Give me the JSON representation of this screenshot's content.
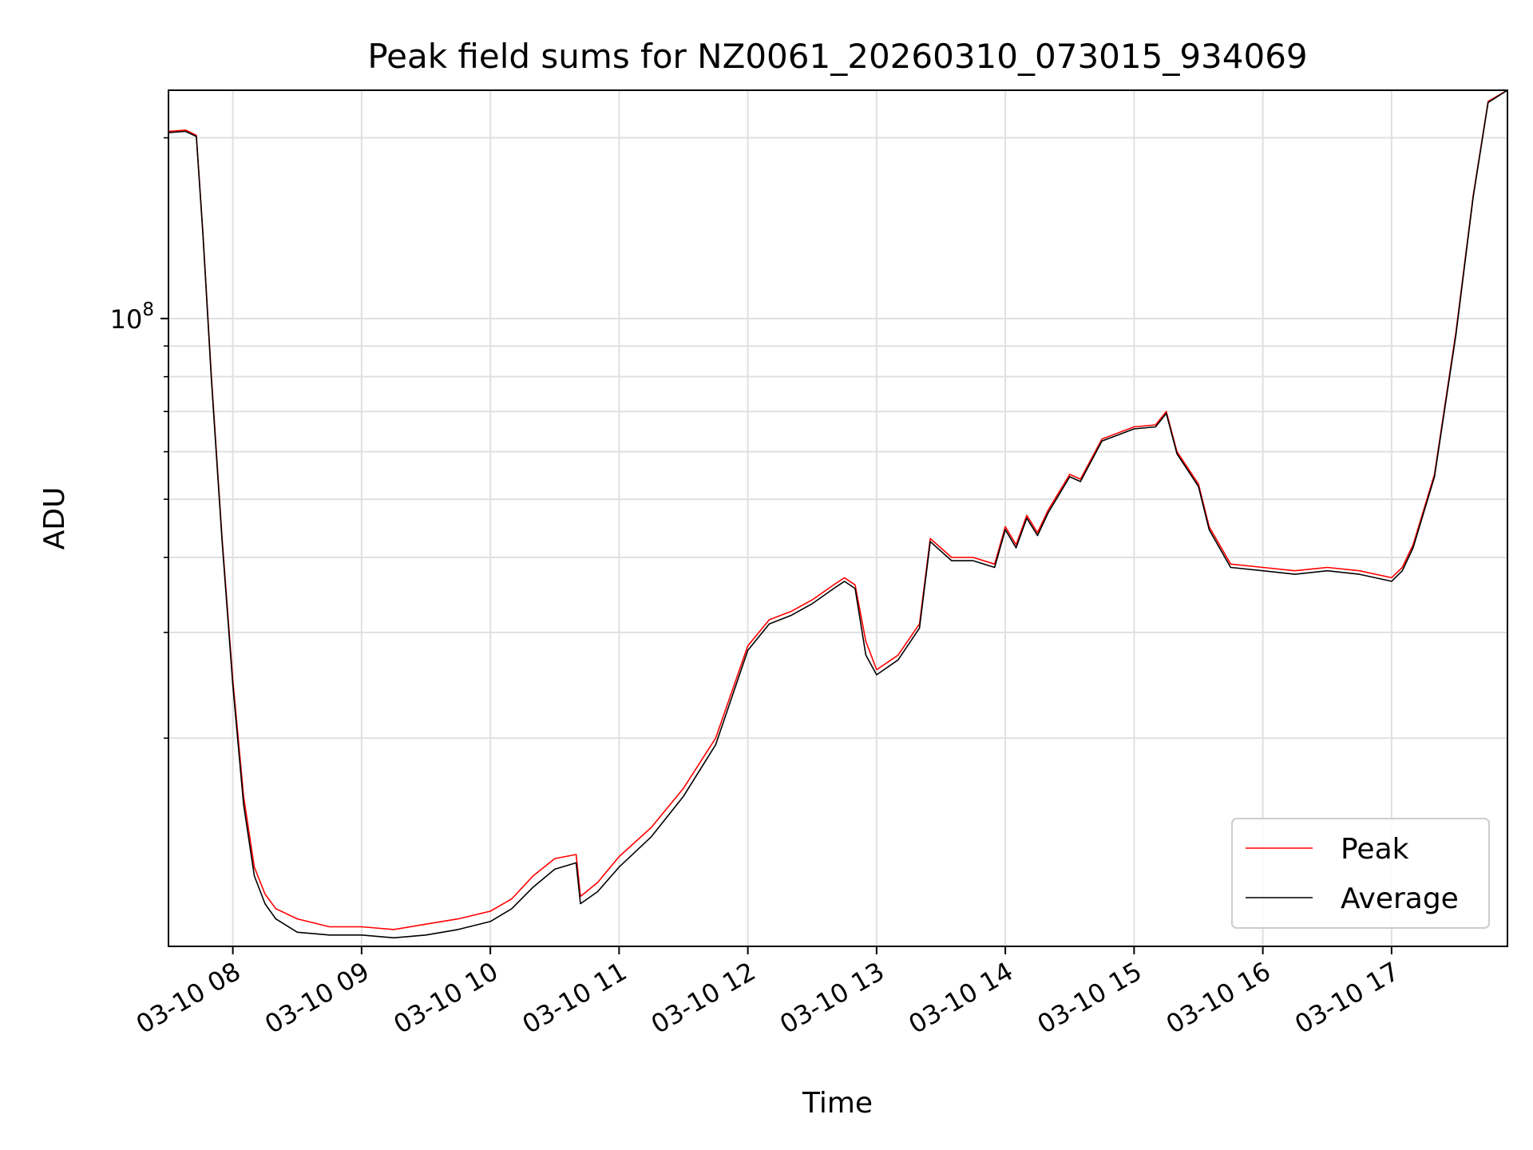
{
  "chart_data": {
    "type": "line",
    "title": "Peak field sums for NZ0061_20260310_073015_934069",
    "xlabel": "Time",
    "ylabel": "ADU",
    "y_scale": "log",
    "ylim": [
      9000000,
      240000000
    ],
    "xlim": [
      "03-10 07:30",
      "03-10 17:54"
    ],
    "grid": true,
    "legend_position": "lower-right",
    "x_ticks": [
      "03-10 08",
      "03-10 09",
      "03-10 10",
      "03-10 11",
      "03-10 12",
      "03-10 13",
      "03-10 14",
      "03-10 15",
      "03-10 16",
      "03-10 17"
    ],
    "y_ticks": [
      {
        "label_base": "10",
        "label_exp": "8",
        "value": 100000000
      }
    ],
    "y_minor_ticks": [
      20000000,
      30000000,
      40000000,
      50000000,
      60000000,
      70000000,
      80000000,
      90000000,
      200000000
    ],
    "colors": {
      "Peak": "#ff0000",
      "Average": "#000000"
    },
    "series": [
      {
        "name": "Peak",
        "x": [
          "03-10 07:30",
          "03-10 07:38",
          "03-10 07:43",
          "03-10 07:46",
          "03-10 07:50",
          "03-10 07:55",
          "03-10 08:00",
          "03-10 08:05",
          "03-10 08:10",
          "03-10 08:15",
          "03-10 08:20",
          "03-10 08:30",
          "03-10 08:45",
          "03-10 09:00",
          "03-10 09:15",
          "03-10 09:30",
          "03-10 09:45",
          "03-10 10:00",
          "03-10 10:10",
          "03-10 10:20",
          "03-10 10:30",
          "03-10 10:40",
          "03-10 10:42",
          "03-10 10:50",
          "03-10 11:00",
          "03-10 11:15",
          "03-10 11:30",
          "03-10 11:45",
          "03-10 12:00",
          "03-10 12:10",
          "03-10 12:20",
          "03-10 12:30",
          "03-10 12:40",
          "03-10 12:45",
          "03-10 12:50",
          "03-10 12:55",
          "03-10 13:00",
          "03-10 13:10",
          "03-10 13:20",
          "03-10 13:25",
          "03-10 13:35",
          "03-10 13:45",
          "03-10 13:55",
          "03-10 14:00",
          "03-10 14:05",
          "03-10 14:10",
          "03-10 14:15",
          "03-10 14:20",
          "03-10 14:30",
          "03-10 14:35",
          "03-10 14:45",
          "03-10 15:00",
          "03-10 15:10",
          "03-10 15:15",
          "03-10 15:20",
          "03-10 15:30",
          "03-10 15:35",
          "03-10 15:45",
          "03-10 16:00",
          "03-10 16:15",
          "03-10 16:30",
          "03-10 16:45",
          "03-10 17:00",
          "03-10 17:05",
          "03-10 17:10",
          "03-10 17:20",
          "03-10 17:30",
          "03-10 17:38",
          "03-10 17:45",
          "03-10 17:54"
        ],
        "values": [
          205000000,
          206000000,
          202000000,
          140000000,
          80000000,
          43000000,
          25000000,
          16000000,
          12200000,
          11000000,
          10400000,
          10000000,
          9700000,
          9700000,
          9600000,
          9800000,
          10000000,
          10300000,
          10800000,
          11800000,
          12600000,
          12800000,
          10900000,
          11500000,
          12700000,
          14200000,
          16500000,
          20000000,
          28500000,
          31500000,
          32500000,
          34000000,
          36000000,
          37000000,
          36000000,
          29000000,
          26000000,
          27500000,
          31000000,
          43000000,
          40000000,
          40000000,
          39000000,
          45000000,
          42000000,
          47000000,
          44000000,
          48000000,
          55000000,
          54000000,
          63000000,
          66000000,
          66500000,
          70000000,
          60000000,
          53000000,
          45000000,
          39000000,
          38500000,
          38000000,
          38500000,
          38000000,
          37000000,
          38500000,
          42000000,
          55000000,
          95000000,
          160000000,
          230000000,
          240000000
        ]
      },
      {
        "name": "Average",
        "x": [
          "03-10 07:30",
          "03-10 07:38",
          "03-10 07:43",
          "03-10 07:46",
          "03-10 07:50",
          "03-10 07:55",
          "03-10 08:00",
          "03-10 08:05",
          "03-10 08:10",
          "03-10 08:15",
          "03-10 08:20",
          "03-10 08:30",
          "03-10 08:45",
          "03-10 09:00",
          "03-10 09:15",
          "03-10 09:30",
          "03-10 09:45",
          "03-10 10:00",
          "03-10 10:10",
          "03-10 10:20",
          "03-10 10:30",
          "03-10 10:40",
          "03-10 10:42",
          "03-10 10:50",
          "03-10 11:00",
          "03-10 11:15",
          "03-10 11:30",
          "03-10 11:45",
          "03-10 12:00",
          "03-10 12:10",
          "03-10 12:20",
          "03-10 12:30",
          "03-10 12:40",
          "03-10 12:45",
          "03-10 12:50",
          "03-10 12:55",
          "03-10 13:00",
          "03-10 13:10",
          "03-10 13:20",
          "03-10 13:25",
          "03-10 13:35",
          "03-10 13:45",
          "03-10 13:55",
          "03-10 14:00",
          "03-10 14:05",
          "03-10 14:10",
          "03-10 14:15",
          "03-10 14:20",
          "03-10 14:30",
          "03-10 14:35",
          "03-10 14:45",
          "03-10 15:00",
          "03-10 15:10",
          "03-10 15:15",
          "03-10 15:20",
          "03-10 15:30",
          "03-10 15:35",
          "03-10 15:45",
          "03-10 16:00",
          "03-10 16:15",
          "03-10 16:30",
          "03-10 16:45",
          "03-10 17:00",
          "03-10 17:05",
          "03-10 17:10",
          "03-10 17:20",
          "03-10 17:30",
          "03-10 17:38",
          "03-10 17:45",
          "03-10 17:54"
        ],
        "values": [
          204000000,
          205000000,
          201000000,
          139000000,
          79000000,
          42500000,
          24500000,
          15500000,
          11800000,
          10600000,
          10000000,
          9500000,
          9400000,
          9400000,
          9300000,
          9400000,
          9600000,
          9900000,
          10400000,
          11300000,
          12100000,
          12400000,
          10600000,
          11100000,
          12200000,
          13700000,
          16000000,
          19500000,
          28000000,
          31000000,
          32000000,
          33500000,
          35500000,
          36500000,
          35500000,
          27500000,
          25500000,
          27000000,
          30500000,
          42500000,
          39500000,
          39500000,
          38500000,
          44500000,
          41500000,
          46500000,
          43500000,
          47500000,
          54500000,
          53500000,
          62500000,
          65500000,
          66000000,
          69500000,
          59500000,
          52500000,
          44500000,
          38500000,
          38000000,
          37500000,
          38000000,
          37500000,
          36500000,
          38000000,
          41500000,
          54500000,
          94000000,
          159000000,
          229000000,
          240000000
        ]
      }
    ]
  }
}
